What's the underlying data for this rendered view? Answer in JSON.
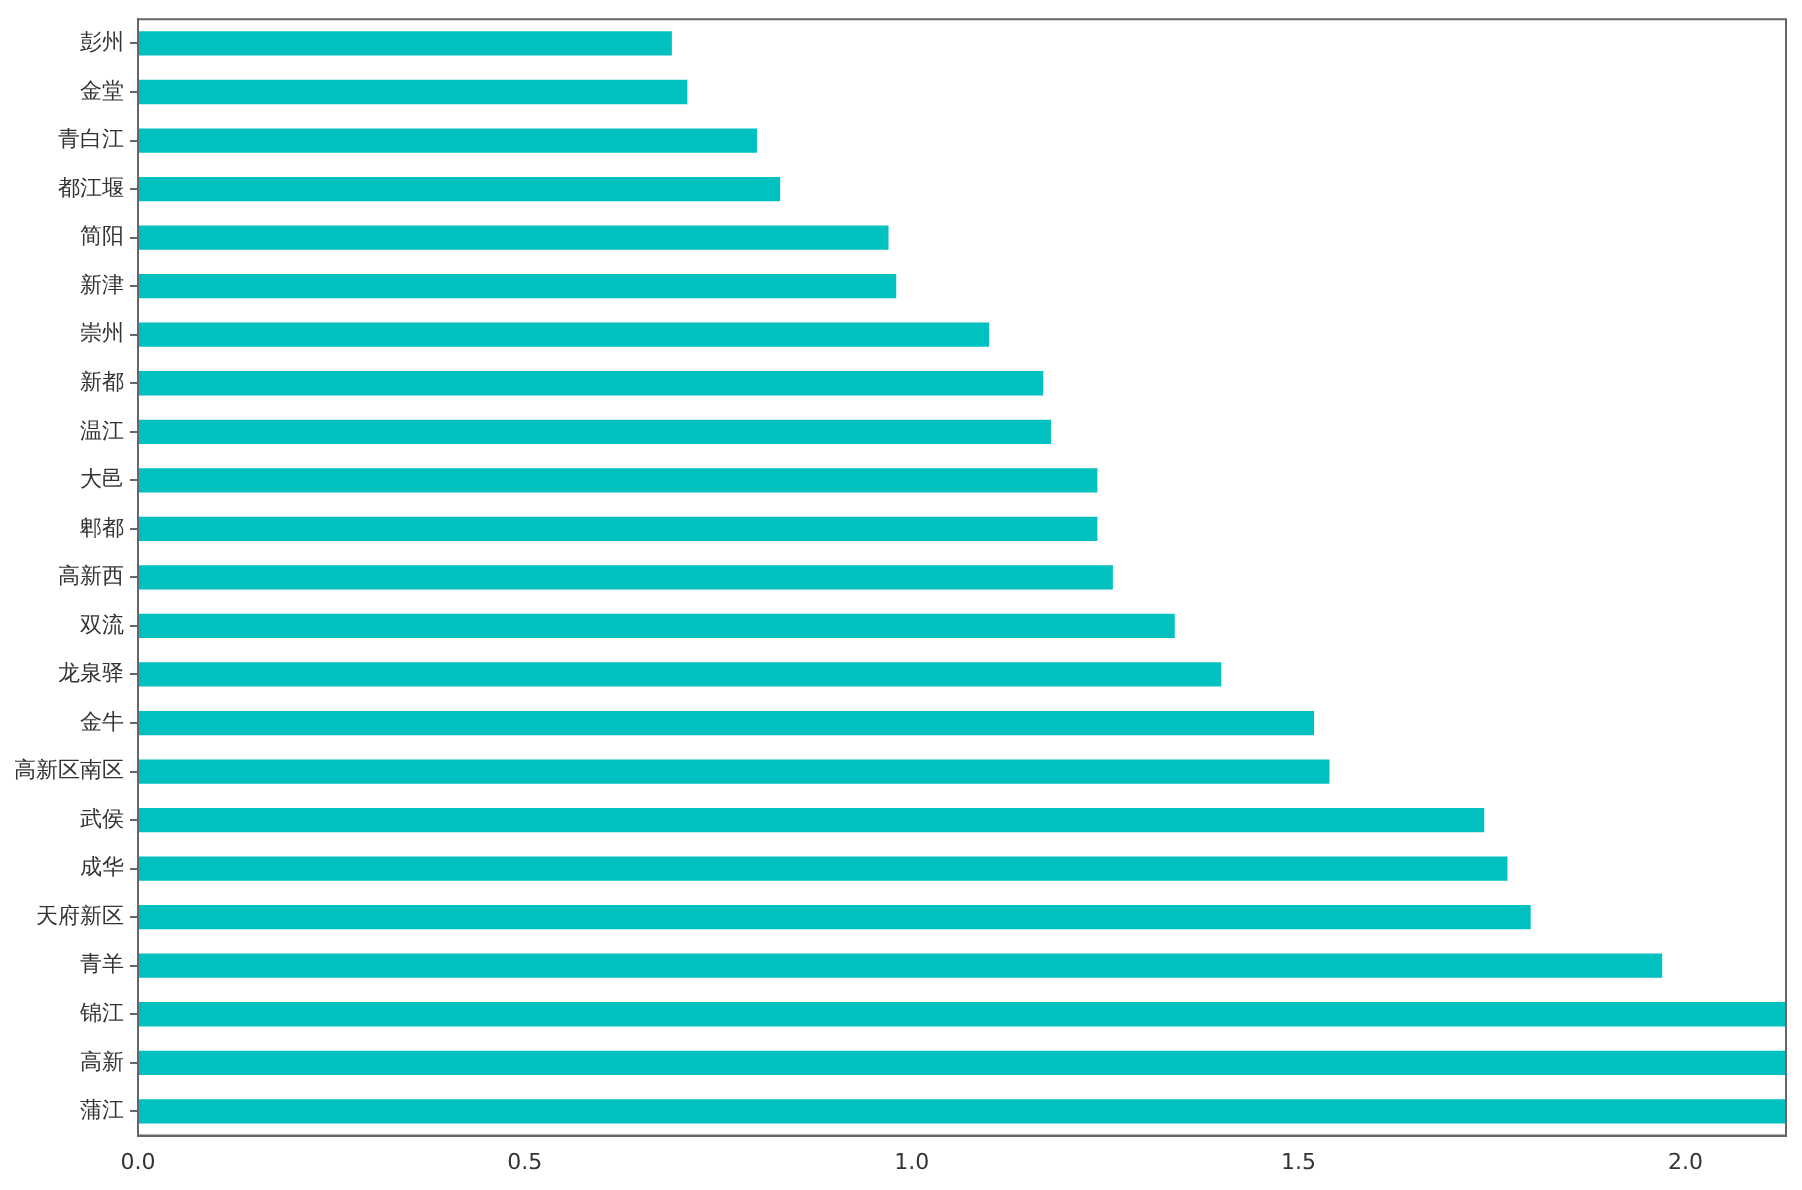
{
  "chart_data": {
    "type": "bar",
    "orientation": "horizontal",
    "color": "#00c0c0",
    "categories": [
      "彭州",
      "金堂",
      "青白江",
      "都江堰",
      "简阳",
      "新津",
      "崇州",
      "新都",
      "温江",
      "大邑",
      "郫都",
      "高新西",
      "双流",
      "龙泉驿",
      "金牛",
      "高新区南区",
      "武侯",
      "成华",
      "天府新区",
      "青羊",
      "锦江",
      "高新",
      "蒲江"
    ],
    "values": [
      0.69,
      0.71,
      0.8,
      0.83,
      0.97,
      0.98,
      1.1,
      1.17,
      1.18,
      1.24,
      1.24,
      1.26,
      1.34,
      1.4,
      1.52,
      1.54,
      1.74,
      1.77,
      1.8,
      1.97,
      2.13,
      2.13,
      2.13
    ],
    "xlim": [
      0,
      2.13
    ],
    "xticks": [
      {
        "value": 0,
        "label": "0.0"
      },
      {
        "value": 0.5,
        "label": "0.5"
      },
      {
        "value": 1,
        "label": "1.0"
      },
      {
        "value": 1.5,
        "label": "1.5"
      },
      {
        "value": 2,
        "label": "2.0"
      }
    ],
    "grid": false,
    "legend": false
  }
}
